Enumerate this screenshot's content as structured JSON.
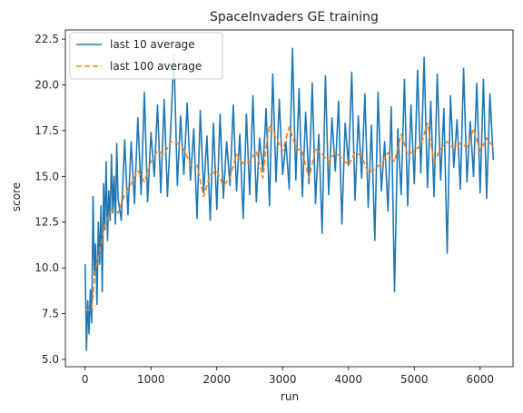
{
  "chart_data": {
    "type": "line",
    "title": "SpaceInvaders GE training",
    "xlabel": "run",
    "ylabel": "score",
    "xlim": [
      -300,
      6500
    ],
    "ylim": [
      4.6,
      23.0
    ],
    "xticks": [
      0,
      1000,
      2000,
      3000,
      4000,
      5000,
      6000
    ],
    "yticks": [
      5.0,
      7.5,
      10.0,
      12.5,
      15.0,
      17.5,
      20.0,
      22.5
    ],
    "xtick_labels": [
      "0",
      "1000",
      "2000",
      "3000",
      "4000",
      "5000",
      "6000"
    ],
    "ytick_labels": [
      "5.0",
      "7.5",
      "10.0",
      "12.5",
      "15.0",
      "17.5",
      "20.0",
      "22.5"
    ],
    "grid": false,
    "legend_position": "top-left",
    "series": [
      {
        "name": "last 10 average",
        "color": "#1f77b4",
        "style": "solid",
        "x": [
          0,
          20,
          40,
          60,
          80,
          100,
          120,
          140,
          160,
          180,
          200,
          220,
          240,
          260,
          280,
          300,
          320,
          340,
          360,
          380,
          400,
          420,
          440,
          460,
          480,
          500,
          550,
          600,
          650,
          700,
          750,
          800,
          850,
          900,
          950,
          1000,
          1050,
          1100,
          1150,
          1200,
          1250,
          1300,
          1350,
          1400,
          1450,
          1500,
          1550,
          1600,
          1650,
          1700,
          1750,
          1800,
          1850,
          1900,
          1950,
          2000,
          2050,
          2100,
          2150,
          2200,
          2250,
          2300,
          2350,
          2400,
          2450,
          2500,
          2550,
          2600,
          2650,
          2700,
          2750,
          2800,
          2850,
          2900,
          2950,
          3000,
          3050,
          3100,
          3150,
          3200,
          3250,
          3300,
          3350,
          3400,
          3450,
          3500,
          3550,
          3600,
          3650,
          3700,
          3750,
          3800,
          3850,
          3900,
          3950,
          4000,
          4050,
          4100,
          4150,
          4200,
          4250,
          4300,
          4350,
          4400,
          4450,
          4500,
          4550,
          4600,
          4650,
          4700,
          4750,
          4800,
          4850,
          4900,
          4950,
          5000,
          5050,
          5100,
          5150,
          5200,
          5250,
          5300,
          5350,
          5400,
          5450,
          5500,
          5550,
          5600,
          5650,
          5700,
          5750,
          5800,
          5850,
          5900,
          5950,
          6000,
          6050,
          6100,
          6150,
          6200
        ],
        "y": [
          10.2,
          5.5,
          8.2,
          6.4,
          8.8,
          7.0,
          13.9,
          9.6,
          11.3,
          8.0,
          12.5,
          10.2,
          13.4,
          8.7,
          14.6,
          12.1,
          15.8,
          11.5,
          14.2,
          12.6,
          16.2,
          13.0,
          15.0,
          12.4,
          16.8,
          13.8,
          12.6,
          17.0,
          12.9,
          16.9,
          13.5,
          18.2,
          14.0,
          19.6,
          13.6,
          17.4,
          15.0,
          18.9,
          14.1,
          19.2,
          13.9,
          17.6,
          21.7,
          14.5,
          18.3,
          15.1,
          19.0,
          14.8,
          17.6,
          12.7,
          18.6,
          14.1,
          17.2,
          12.6,
          17.9,
          13.2,
          18.4,
          13.8,
          16.9,
          14.5,
          18.9,
          14.2,
          17.3,
          12.7,
          18.4,
          14.0,
          19.4,
          13.6,
          17.1,
          15.3,
          18.7,
          13.4,
          20.6,
          14.7,
          19.2,
          15.1,
          16.9,
          14.3,
          22.0,
          14.8,
          19.8,
          13.9,
          18.5,
          14.6,
          20.1,
          13.5,
          17.3,
          11.9,
          20.5,
          14.0,
          18.2,
          15.3,
          19.1,
          12.4,
          17.9,
          15.6,
          20.7,
          13.7,
          18.3,
          14.9,
          19.5,
          13.3,
          17.8,
          11.5,
          19.6,
          14.2,
          16.9,
          13.1,
          18.8,
          8.7,
          17.6,
          14.0,
          20.3,
          13.4,
          18.9,
          14.6,
          20.8,
          15.2,
          21.5,
          14.4,
          19.1,
          13.9,
          20.6,
          14.8,
          18.7,
          10.8,
          19.4,
          15.5,
          18.1,
          14.3,
          20.9,
          14.7,
          18.0,
          15.0,
          20.1,
          14.1,
          20.3,
          13.8,
          19.5,
          15.9
        ]
      },
      {
        "name": "last 100 average",
        "color": "#ff7f0e",
        "style": "dashed",
        "x": [
          0,
          50,
          100,
          150,
          200,
          250,
          300,
          400,
          500,
          600,
          700,
          800,
          900,
          1000,
          1100,
          1200,
          1300,
          1400,
          1500,
          1600,
          1700,
          1800,
          1900,
          2000,
          2100,
          2200,
          2300,
          2400,
          2500,
          2600,
          2700,
          2750,
          2800,
          2850,
          2900,
          3000,
          3100,
          3200,
          3300,
          3400,
          3500,
          3600,
          3700,
          3800,
          3900,
          4000,
          4100,
          4200,
          4300,
          4400,
          4500,
          4600,
          4700,
          4800,
          4900,
          5000,
          5100,
          5200,
          5300,
          5400,
          5500,
          5600,
          5700,
          5800,
          5900,
          6000,
          6100,
          6200
        ],
        "y": [
          7.7,
          7.7,
          7.7,
          9.8,
          10.6,
          11.5,
          12.3,
          13.2,
          13.0,
          14.0,
          14.6,
          15.3,
          14.7,
          15.8,
          16.4,
          16.2,
          16.9,
          16.8,
          16.5,
          15.6,
          15.6,
          13.9,
          15.1,
          15.3,
          14.5,
          14.9,
          16.2,
          15.7,
          15.8,
          16.4,
          14.9,
          16.6,
          17.8,
          17.5,
          17.1,
          16.4,
          17.7,
          16.6,
          16.3,
          14.9,
          16.5,
          16.2,
          15.8,
          16.3,
          16.0,
          15.6,
          16.3,
          16.1,
          15.2,
          15.4,
          15.7,
          16.3,
          15.8,
          17.3,
          16.2,
          16.4,
          16.7,
          17.9,
          15.8,
          16.5,
          16.9,
          16.5,
          16.8,
          16.6,
          17.6,
          16.4,
          17.1,
          16.6
        ]
      }
    ]
  }
}
